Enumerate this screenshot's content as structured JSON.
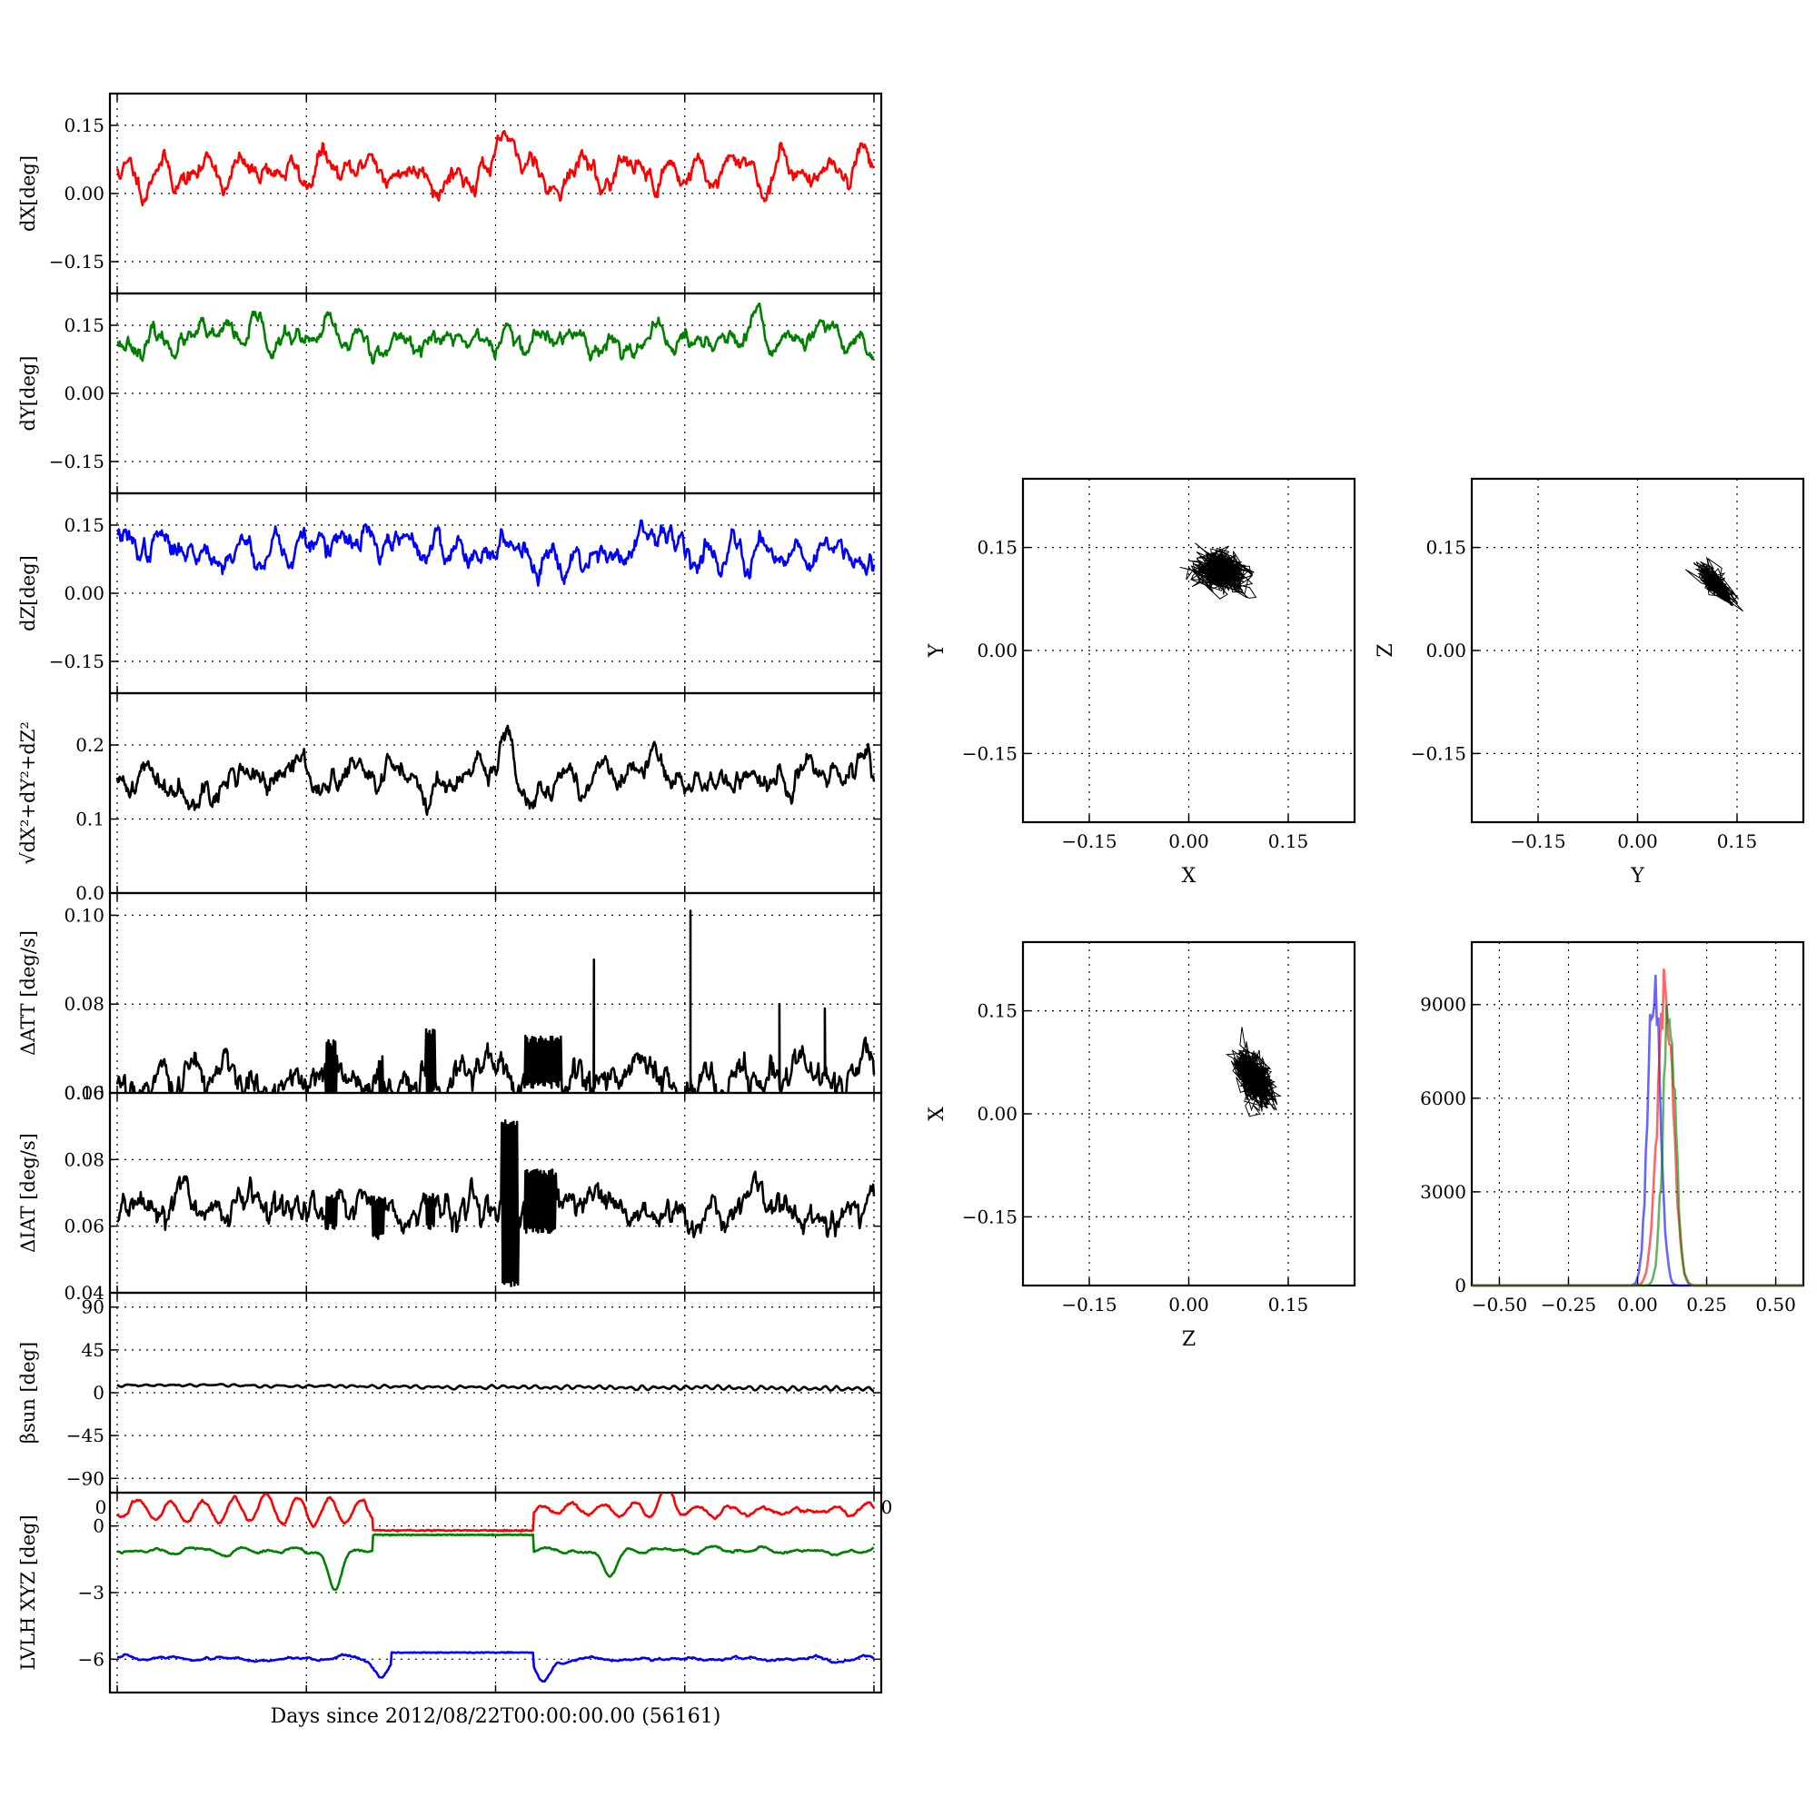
{
  "colors": {
    "x": "#ff0000",
    "y": "#008000",
    "z": "#0000ff",
    "k": "#000000"
  },
  "chart_data": [
    {
      "type": "line",
      "id": "dX",
      "ylabel": "dX[deg]",
      "ylim": [
        -0.22,
        0.22
      ],
      "yticks": [
        -0.15,
        0.0,
        0.15
      ],
      "ytick_labels": [
        "−0.15",
        "0.00",
        "0.15"
      ],
      "xlim": [
        0,
        4
      ],
      "grid": true,
      "series": [
        {
          "color": "x",
          "seed": 11,
          "base": 0.05,
          "amp": 0.03,
          "noise": 0.008,
          "waves": 22,
          "jumps": [],
          "bumps": [
            {
              "at": 2.05,
              "v": 0.06
            },
            {
              "at": 3.95,
              "v": 0.06
            }
          ]
        }
      ]
    },
    {
      "type": "line",
      "id": "dY",
      "ylabel": "dY[deg]",
      "ylim": [
        -0.22,
        0.22
      ],
      "yticks": [
        -0.15,
        0.0,
        0.15
      ],
      "ytick_labels": [
        "−0.15",
        "0.00",
        "0.15"
      ],
      "xlim": [
        0,
        4
      ],
      "grid": true,
      "series": [
        {
          "color": "y",
          "seed": 23,
          "base": 0.115,
          "amp": 0.022,
          "noise": 0.007,
          "waves": 24,
          "jumps": [],
          "bumps": []
        }
      ]
    },
    {
      "type": "line",
      "id": "dZ",
      "ylabel": "dZ[deg]",
      "ylim": [
        -0.22,
        0.22
      ],
      "yticks": [
        -0.15,
        0.0,
        0.15
      ],
      "ytick_labels": [
        "−0.15",
        "0.00",
        "0.15"
      ],
      "xlim": [
        0,
        4
      ],
      "grid": true,
      "series": [
        {
          "color": "z",
          "seed": 37,
          "base": 0.1,
          "amp": 0.022,
          "noise": 0.009,
          "waves": 30,
          "jumps": [],
          "bumps": []
        }
      ]
    },
    {
      "type": "line",
      "id": "dR",
      "ylabel": "√dX²+dY²+dZ²",
      "ylim": [
        0.0,
        0.27
      ],
      "yticks": [
        0.0,
        0.1,
        0.2
      ],
      "ytick_labels": [
        "0.0",
        "0.1",
        "0.2"
      ],
      "xlim": [
        0,
        4
      ],
      "grid": true,
      "series": [
        {
          "color": "k",
          "seed": 41,
          "base": 0.155,
          "amp": 0.012,
          "noise": 0.006,
          "waves": 18,
          "jumps": [],
          "bumps": [
            {
              "at": 2.05,
              "v": 0.035
            }
          ]
        }
      ]
    },
    {
      "type": "line",
      "id": "dATT",
      "ylabel": "ΔATT [deg/s]",
      "ylim": [
        0.06,
        0.105
      ],
      "yticks": [
        0.06,
        0.08,
        0.1
      ],
      "ytick_labels": [
        "0.06",
        "0.08",
        "0.10"
      ],
      "xlim": [
        0,
        4
      ],
      "grid": true,
      "series": [
        {
          "color": "k",
          "seed": 53,
          "base": 0.064,
          "amp": 0.0,
          "noise": 0.0012,
          "waves": 0,
          "sawtooth": 0.0025,
          "spikes": [
            {
              "at": 2.52,
              "v": 0.09
            },
            {
              "at": 3.03,
              "v": 0.101
            },
            {
              "at": 3.5,
              "v": 0.08
            },
            {
              "at": 3.74,
              "v": 0.079
            }
          ],
          "bursts": [
            {
              "from": 1.1,
              "to": 1.16,
              "lo": 0.059,
              "hi": 0.072
            },
            {
              "from": 1.38,
              "to": 1.41,
              "lo": 0.057,
              "hi": 0.069
            },
            {
              "from": 1.63,
              "to": 1.68,
              "lo": 0.059,
              "hi": 0.075
            },
            {
              "from": 2.15,
              "to": 2.35,
              "lo": 0.061,
              "hi": 0.073
            }
          ],
          "jumps": [],
          "bumps": []
        }
      ]
    },
    {
      "type": "line",
      "id": "dIAT",
      "ylabel": "ΔIAT [deg/s]",
      "ylim": [
        0.04,
        0.1
      ],
      "yticks": [
        0.04,
        0.06,
        0.08,
        0.1
      ],
      "ytick_labels": [
        "0.04",
        "0.06",
        "0.08",
        "0.10"
      ],
      "xlim": [
        0,
        4
      ],
      "grid": true,
      "series": [
        {
          "color": "k",
          "seed": 67,
          "base": 0.0645,
          "amp": 0.0,
          "noise": 0.0012,
          "waves": 0,
          "sawtooth": 0.0035,
          "spikes": [],
          "bursts": [
            {
              "from": 1.1,
              "to": 1.16,
              "lo": 0.059,
              "hi": 0.07
            },
            {
              "from": 1.35,
              "to": 1.41,
              "lo": 0.056,
              "hi": 0.069
            },
            {
              "from": 1.63,
              "to": 1.68,
              "lo": 0.059,
              "hi": 0.07
            },
            {
              "from": 2.03,
              "to": 2.12,
              "lo": 0.042,
              "hi": 0.092
            },
            {
              "from": 2.15,
              "to": 2.32,
              "lo": 0.058,
              "hi": 0.077
            }
          ],
          "jumps": [],
          "bumps": []
        }
      ]
    },
    {
      "type": "line",
      "id": "beta",
      "ylabel": "βsun [deg]",
      "ylim": [
        -105,
        105
      ],
      "yticks": [
        -90,
        -45,
        0,
        45,
        90
      ],
      "ytick_labels": [
        "−90",
        "−45",
        "0",
        "45",
        "90"
      ],
      "xlim": [
        0,
        4
      ],
      "grid": true,
      "series": [
        {
          "color": "k",
          "seed": 71,
          "base": 8,
          "trend": -4,
          "amp": 1.5,
          "noise": 0.2,
          "waves": 60,
          "jumps": [],
          "bumps": []
        }
      ]
    },
    {
      "type": "line",
      "id": "lvlh",
      "ylabel": "LVLH XYZ [deg]",
      "ylim": [
        -7.5,
        1.5
      ],
      "yticks": [
        -6,
        -3,
        0
      ],
      "ytick_labels": [
        "−6",
        "−3",
        "0"
      ],
      "xlim": [
        0,
        4
      ],
      "grid": true,
      "xlabel": "Days since 2012/08/22T00:00:00.00 (56161)",
      "corner_labels": [
        "0",
        "0"
      ],
      "series": [
        {
          "color": "x",
          "seed": 83,
          "base": 0.7,
          "amp": 0.45,
          "noise": 0.03,
          "waves": 20,
          "flat": [
            {
              "from": 1.35,
              "to": 2.2,
              "v": -0.2
            }
          ],
          "bumps": [
            {
              "at": 2.9,
              "v": 0.7
            }
          ],
          "jumps": []
        },
        {
          "color": "y",
          "seed": 89,
          "base": -1.1,
          "amp": 0.12,
          "noise": 0.02,
          "waves": 20,
          "flat": [
            {
              "from": 1.35,
              "to": 2.2,
              "v": -0.4
            }
          ],
          "bumps": [
            {
              "at": 1.15,
              "v": -1.8
            },
            {
              "at": 2.6,
              "v": -1.2
            }
          ],
          "jumps": []
        },
        {
          "color": "z",
          "seed": 97,
          "base": -6.0,
          "amp": 0.08,
          "noise": 0.02,
          "waves": 20,
          "flat": [
            {
              "from": 1.45,
              "to": 2.2,
              "v": -5.7
            }
          ],
          "bumps": [
            {
              "at": 1.4,
              "v": -0.8
            },
            {
              "at": 1.65,
              "v": -1.0
            },
            {
              "at": 2.25,
              "v": -1.0
            }
          ],
          "jumps": []
        }
      ]
    },
    {
      "type": "scatter",
      "id": "XY",
      "xlabel": "X",
      "ylabel": "Y",
      "xlim": [
        -0.25,
        0.25
      ],
      "ylim": [
        -0.25,
        0.25
      ],
      "xticks": [
        -0.15,
        0.0,
        0.15
      ],
      "yticks": [
        -0.15,
        0.0,
        0.15
      ],
      "tick_labels": [
        "−0.15",
        "0.00",
        "0.15"
      ],
      "grid": true,
      "cloud": {
        "cx": 0.05,
        "cy": 0.115,
        "sx": 0.032,
        "sy": 0.025,
        "rho": -0.2,
        "n": 700,
        "seed": 5
      }
    },
    {
      "type": "scatter",
      "id": "YZ",
      "xlabel": "Y",
      "ylabel": "Z",
      "xlim": [
        -0.25,
        0.25
      ],
      "ylim": [
        -0.25,
        0.25
      ],
      "xticks": [
        -0.15,
        0.0,
        0.15
      ],
      "yticks": [
        -0.15,
        0.0,
        0.15
      ],
      "tick_labels": [
        "−0.15",
        "0.00",
        "0.15"
      ],
      "grid": true,
      "cloud": {
        "cx": 0.115,
        "cy": 0.1,
        "sx": 0.022,
        "sy": 0.022,
        "rho": -0.75,
        "n": 700,
        "seed": 9
      }
    },
    {
      "type": "scatter",
      "id": "ZX",
      "xlabel": "Z",
      "ylabel": "X",
      "xlim": [
        -0.25,
        0.25
      ],
      "ylim": [
        -0.25,
        0.25
      ],
      "xticks": [
        -0.15,
        0.0,
        0.15
      ],
      "yticks": [
        -0.15,
        0.0,
        0.15
      ],
      "tick_labels": [
        "−0.15",
        "0.00",
        "0.15"
      ],
      "grid": true,
      "cloud": {
        "cx": 0.1,
        "cy": 0.05,
        "sx": 0.025,
        "sy": 0.033,
        "rho": -0.5,
        "n": 700,
        "seed": 13
      }
    },
    {
      "type": "histogram",
      "id": "hist",
      "xlim": [
        -0.6,
        0.6
      ],
      "ylim": [
        0,
        11000
      ],
      "xticks": [
        -0.5,
        -0.25,
        0.0,
        0.25,
        0.5
      ],
      "xtick_labels": [
        "−0.50",
        "−0.25",
        "0.00",
        "0.25",
        "0.50"
      ],
      "yticks": [
        0,
        3000,
        6000,
        9000
      ],
      "ytick_labels": [
        "0",
        "3000",
        "6000",
        "9000"
      ],
      "grid": true,
      "series": [
        {
          "color": "z",
          "center": 0.06,
          "sigma": 0.022,
          "peak": 10000
        },
        {
          "color": "x",
          "center": 0.1,
          "sigma": 0.028,
          "peak": 9300
        },
        {
          "color": "y",
          "center": 0.115,
          "sigma": 0.022,
          "peak": 9000
        }
      ]
    }
  ]
}
